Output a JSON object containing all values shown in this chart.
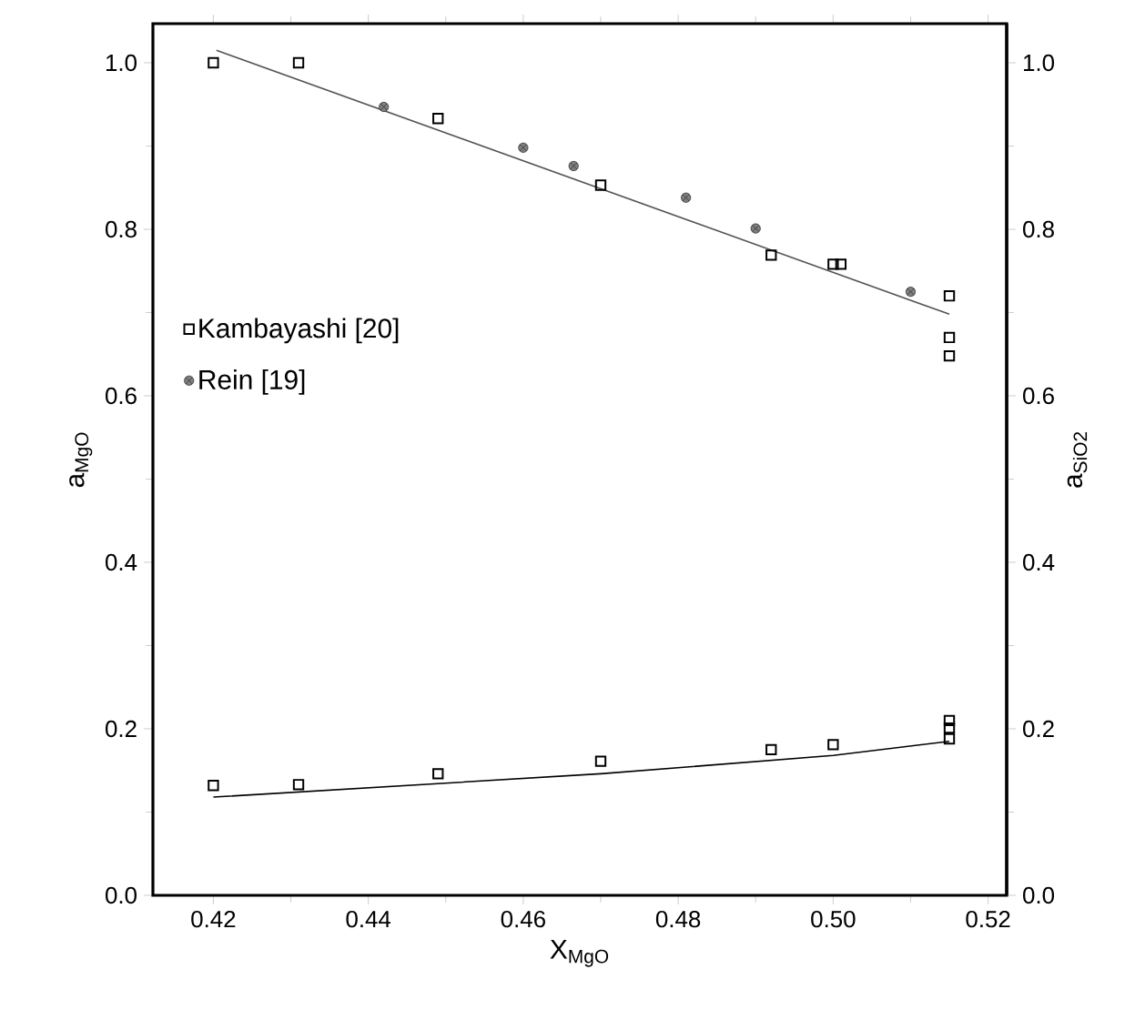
{
  "chart_data": {
    "type": "scatter",
    "xlabel": "X$_{MgO}$",
    "ylabel": "a$_{MgO}$",
    "y2label": "a$_{SiO2}$",
    "xlim": [
      0.4122,
      0.5224
    ],
    "xticks": [
      {
        "value": 0.42,
        "label": "0.42"
      },
      {
        "value": 0.44,
        "label": "0.44"
      },
      {
        "value": 0.46,
        "label": "0.46"
      },
      {
        "value": 0.48,
        "label": "0.48"
      },
      {
        "value": 0.5,
        "label": "0.50"
      },
      {
        "value": 0.52,
        "label": "0.52"
      }
    ],
    "ylim": [
      0,
      1.047
    ],
    "yticks": [
      {
        "value": 0,
        "label": "0.0"
      },
      {
        "value": 0.2,
        "label": "0.2"
      },
      {
        "value": 0.4,
        "label": "0.4"
      },
      {
        "value": 0.6,
        "label": "0.6"
      },
      {
        "value": 0.8,
        "label": "0.8"
      },
      {
        "value": 1,
        "label": "1.0"
      }
    ],
    "y2lim": [
      0,
      1.047
    ],
    "y2ticks": [
      {
        "value": 0,
        "label": "0.0"
      },
      {
        "value": 0.2,
        "label": "0.2"
      },
      {
        "value": 0.4,
        "label": "0.4"
      },
      {
        "value": 0.6,
        "label": "0.6"
      },
      {
        "value": 0.8,
        "label": "0.8"
      },
      {
        "value": 1,
        "label": "1.0"
      }
    ],
    "legend": "left",
    "grid": false,
    "series": [
      {
        "name": "Kambayashi [20]",
        "marker": "square",
        "color": "#000000",
        "x": [
          0.42,
          0.431,
          0.449,
          0.47,
          0.492,
          0.5,
          0.501,
          0.515,
          0.515,
          0.515
        ],
        "values": [
          1.0,
          1.0,
          0.933,
          0.853,
          0.769,
          0.758,
          0.758,
          0.72,
          0.67,
          0.648
        ]
      },
      {
        "name": "Rein [19]",
        "marker": "cross",
        "color": "#333333",
        "x": [
          0.442,
          0.46,
          0.4665,
          0.481,
          0.49,
          0.51
        ],
        "values": [
          0.947,
          0.898,
          0.876,
          0.838,
          0.801,
          0.725
        ]
      },
      {
        "marker": "square",
        "color": "#000000",
        "axis": "y2",
        "x": [
          0.42,
          0.431,
          0.449,
          0.47,
          0.492,
          0.5,
          0.515,
          0.515,
          0.515
        ],
        "values": [
          0.132,
          0.133,
          0.146,
          0.161,
          0.175,
          0.181,
          0.21,
          0.201,
          0.188
        ]
      },
      {
        "type": "line",
        "marker": "none",
        "color": "#555555",
        "x": [
          0.4204,
          0.515
        ],
        "values": [
          1.015,
          0.698
        ]
      },
      {
        "type": "line",
        "marker": "none",
        "color": "#000000",
        "axis": "y2",
        "x": [
          0.42,
          0.47,
          0.5,
          0.515
        ],
        "values": [
          0.118,
          0.146,
          0.168,
          0.185
        ]
      }
    ]
  }
}
